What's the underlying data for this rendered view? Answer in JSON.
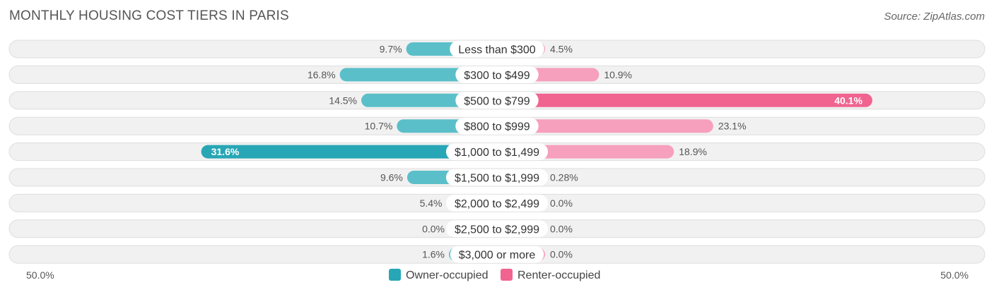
{
  "title": "MONTHLY HOUSING COST TIERS IN PARIS",
  "source": "Source: ZipAtlas.com",
  "colors": {
    "owner": "#5bbfc9",
    "owner_strong": "#27a6b5",
    "renter": "#f6a0bd",
    "renter_strong": "#f0648f"
  },
  "chart_data": {
    "type": "bar",
    "orientation": "diverging-horizontal",
    "categories": [
      "Less than $300",
      "$300 to $499",
      "$500 to $799",
      "$800 to $999",
      "$1,000 to $1,499",
      "$1,500 to $1,999",
      "$2,000 to $2,499",
      "$2,500 to $2,999",
      "$3,000 or more"
    ],
    "series": [
      {
        "name": "Owner-occupied",
        "values": [
          9.7,
          16.8,
          14.5,
          10.7,
          31.6,
          9.6,
          5.4,
          0.0,
          1.6
        ],
        "labels": [
          "9.7%",
          "16.8%",
          "14.5%",
          "10.7%",
          "31.6%",
          "9.6%",
          "5.4%",
          "0.0%",
          "1.6%"
        ]
      },
      {
        "name": "Renter-occupied",
        "values": [
          4.5,
          10.9,
          40.1,
          23.1,
          18.9,
          0.28,
          0.0,
          0.0,
          0.0
        ],
        "labels": [
          "4.5%",
          "10.9%",
          "40.1%",
          "23.1%",
          "18.9%",
          "0.28%",
          "0.0%",
          "0.0%",
          "0.0%"
        ]
      }
    ],
    "xlim": [
      -50,
      50
    ],
    "axis_labels": {
      "left": "50.0%",
      "right": "50.0%"
    },
    "legend_position": "bottom-center",
    "grid": false
  }
}
